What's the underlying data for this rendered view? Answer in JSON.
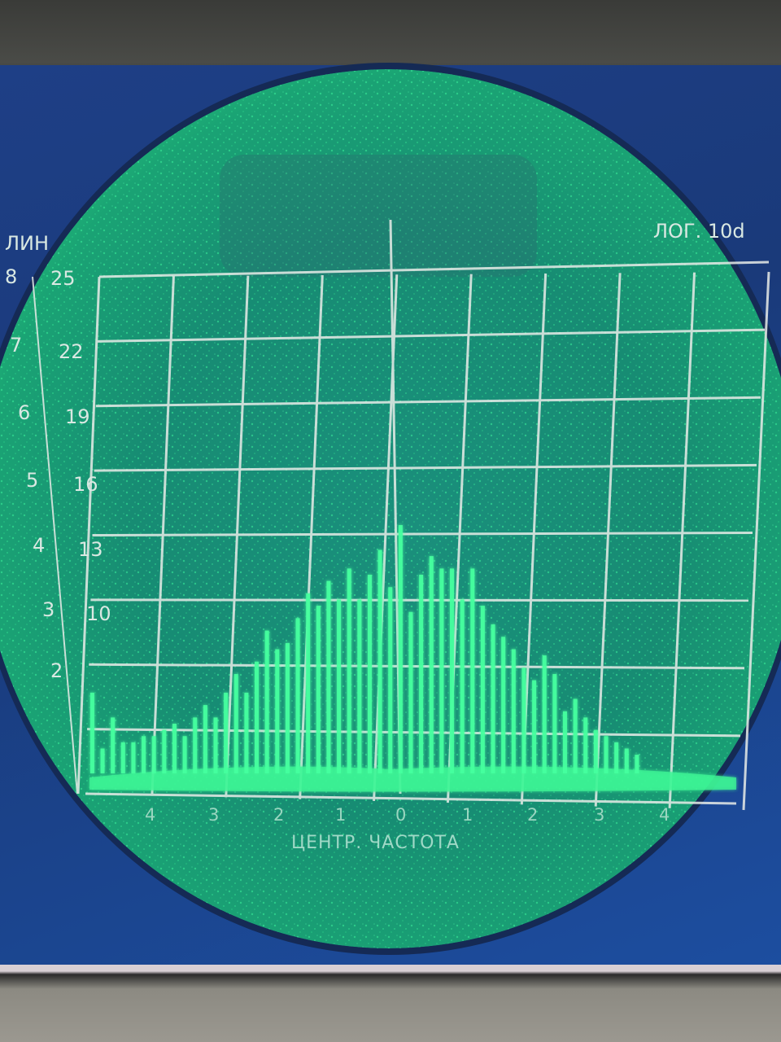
{
  "screen": {
    "label_left": "ЛИН",
    "label_right": "ЛОГ. 10d",
    "bottom_caption": "ЦЕНТР. ЧАСТОТА",
    "lin_scale": [
      "8",
      "7",
      "6",
      "5",
      "4",
      "3",
      "2"
    ],
    "db_scale": [
      "25",
      "22",
      "19",
      "16",
      "13",
      "10"
    ],
    "freq_ticks": [
      "4",
      "3",
      "2",
      "1",
      "0",
      "1",
      "2",
      "3",
      "4"
    ]
  },
  "colors": {
    "phosphor": "#27e08a",
    "grid": "#e8ece8",
    "panel_blue": "#1c3f8a"
  },
  "chart_data": {
    "type": "bar",
    "x": [
      -4.6,
      -4.45,
      -4.3,
      -4.15,
      -4.0,
      -3.85,
      -3.7,
      -3.55,
      -3.4,
      -3.25,
      -3.1,
      -2.95,
      -2.8,
      -2.65,
      -2.5,
      -2.35,
      -2.2,
      -2.05,
      -1.9,
      -1.75,
      -1.6,
      -1.45,
      -1.3,
      -1.15,
      -1.0,
      -0.85,
      -0.7,
      -0.55,
      -0.4,
      -0.25,
      -0.1,
      0.05,
      0.2,
      0.35,
      0.5,
      0.65,
      0.8,
      0.95,
      1.1,
      1.25,
      1.4,
      1.55,
      1.7,
      1.85,
      2.0,
      2.15,
      2.3,
      2.45,
      2.6,
      2.75,
      2.9,
      3.05,
      3.2,
      3.35
    ],
    "values": [
      1.3,
      0.4,
      0.9,
      0.5,
      0.5,
      0.6,
      0.6,
      0.7,
      0.8,
      0.6,
      0.9,
      1.1,
      0.9,
      1.3,
      1.6,
      1.3,
      1.8,
      2.3,
      2.0,
      2.1,
      2.5,
      2.9,
      2.7,
      3.1,
      2.8,
      3.3,
      2.8,
      3.2,
      3.6,
      3.0,
      4.0,
      2.6,
      3.2,
      3.5,
      3.3,
      3.3,
      2.8,
      3.3,
      2.7,
      2.4,
      2.2,
      2.0,
      1.7,
      1.5,
      1.9,
      1.6,
      1.0,
      1.2,
      0.9,
      0.7,
      0.6,
      0.5,
      0.4,
      0.3
    ],
    "xlim": [
      -4.7,
      4.8
    ],
    "ylim": [
      0,
      8
    ],
    "grid": true
  }
}
